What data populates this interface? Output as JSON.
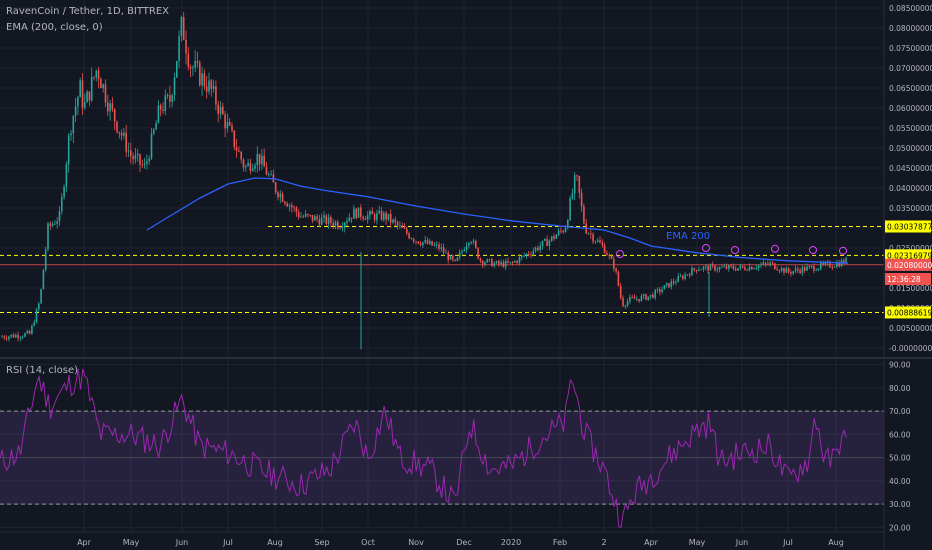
{
  "header": {
    "symbol": "RavenCoin / Tether, 1D, BITTREX",
    "ema_study": "EMA (200, close, 0)",
    "rsi_study": "RSI (14, close)"
  },
  "annotations": {
    "ema_label": "EMA 200"
  },
  "price_scale": {
    "ticks": [
      "0.08500000",
      "0.08000000",
      "0.07500000",
      "0.07000000",
      "0.06500000",
      "0.06000000",
      "0.05500000",
      "0.05000000",
      "0.04500000",
      "0.04000000",
      "0.03500000",
      "0.03000000",
      "0.02500000",
      "0.02000000",
      "0.01500000",
      "0.01000000",
      "0.00500000",
      "-0.00000000"
    ],
    "tick_values": [
      0.085,
      0.08,
      0.075,
      0.07,
      0.065,
      0.06,
      0.055,
      0.05,
      0.045,
      0.04,
      0.035,
      0.03,
      0.025,
      0.02,
      0.015,
      0.01,
      0.005,
      0.0
    ],
    "levels": [
      {
        "label": "0.03037877",
        "value": 0.03037877,
        "bg": "#ffff00",
        "fg": "#000000"
      },
      {
        "label": "0.02316979",
        "value": 0.02316979,
        "bg": "#ffff00",
        "fg": "#000000"
      },
      {
        "label": "0.02080000",
        "value": 0.0208,
        "bg": "#ef5350",
        "fg": "#ffffff"
      },
      {
        "label": "12:36:28",
        "value": 0.01725,
        "bg": "#ef5350",
        "fg": "#ffffff"
      },
      {
        "label": "0.00888619",
        "value": 0.00888619,
        "bg": "#ffff00",
        "fg": "#000000"
      }
    ]
  },
  "rsi_scale": {
    "ticks": [
      "90.00",
      "80.00",
      "70.00",
      "60.00",
      "50.00",
      "40.00",
      "30.00",
      "20.00"
    ],
    "tick_values": [
      90,
      80,
      70,
      60,
      50,
      40,
      30,
      20
    ]
  },
  "time_axis": {
    "labels": [
      "Apr",
      "May",
      "Jun",
      "Jul",
      "Aug",
      "Sep",
      "Oct",
      "Nov",
      "Dec",
      "2020",
      "Feb",
      "2",
      "Apr",
      "May",
      "Jun",
      "Jul",
      "Aug"
    ]
  },
  "colors": {
    "up": "#26a69a",
    "down": "#ef5350",
    "ema": "#2962ff",
    "rsi": "#9c27b0",
    "level_line": "#ffff00",
    "price_line": "#ef5350"
  },
  "chart_data": [
    {
      "type": "candlestick",
      "title": "RavenCoin / Tether, 1D, BITTREX",
      "x": [
        "Apr",
        "May",
        "Jun",
        "Jul",
        "Aug",
        "Sep",
        "Oct",
        "Nov",
        "Dec",
        "2020",
        "Feb",
        "2",
        "Apr",
        "May",
        "Jun",
        "Jul",
        "Aug"
      ],
      "close_at_label": [
        0.06,
        0.065,
        0.075,
        0.055,
        0.04,
        0.032,
        0.035,
        0.027,
        0.023,
        0.021,
        0.038,
        0.022,
        0.013,
        0.019,
        0.02,
        0.02,
        0.022
      ],
      "ema200_at_label": [
        null,
        null,
        null,
        0.036,
        0.042,
        0.041,
        0.038,
        0.036,
        0.034,
        0.032,
        0.031,
        0.029,
        0.025,
        0.023,
        0.022,
        0.021,
        0.021
      ],
      "high_max": 0.0812,
      "low_min": -0.0003,
      "last_price": 0.0208,
      "ylim": [
        -0.002,
        0.087
      ],
      "horizontal_levels": [
        0.03037877,
        0.02316979,
        0.00888619
      ],
      "series": [
        {
          "name": "EMA 200"
        }
      ]
    },
    {
      "type": "line",
      "title": "RSI (14, close)",
      "x": [
        "Apr",
        "May",
        "Jun",
        "Jul",
        "Aug",
        "Sep",
        "Oct",
        "Nov",
        "Dec",
        "2020",
        "Feb",
        "2",
        "Apr",
        "May",
        "Jun",
        "Jul",
        "Aug"
      ],
      "values": [
        85,
        60,
        65,
        55,
        48,
        38,
        50,
        45,
        35,
        46,
        85,
        28,
        45,
        55,
        52,
        48,
        53
      ],
      "ylim": [
        18,
        92
      ],
      "bands": [
        70,
        30
      ],
      "midline": 50
    }
  ]
}
